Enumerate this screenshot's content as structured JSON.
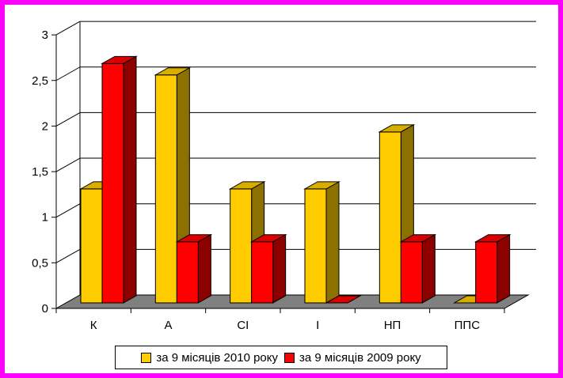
{
  "chart_data": {
    "type": "bar",
    "categories": [
      "К",
      "А",
      "СІ",
      "І",
      "НП",
      "ППС"
    ],
    "series": [
      {
        "name": "за 9 місяців 2010 року",
        "color": "#ffcc00",
        "values": [
          1.25,
          2.5,
          1.25,
          1.25,
          1.875,
          0
        ]
      },
      {
        "name": "за 9 місяців 2009 року",
        "color": "#ff0000",
        "values": [
          2.625,
          0.67,
          0.67,
          0,
          0.67,
          0.67
        ]
      }
    ],
    "yticks": [
      "0",
      "0,5",
      "1",
      "1,5",
      "2",
      "2,5",
      "3"
    ],
    "ylim": [
      0,
      3
    ],
    "grid": true,
    "legend_position": "bottom",
    "frame_color": "#ff00ff",
    "floor_color": "#808080"
  }
}
